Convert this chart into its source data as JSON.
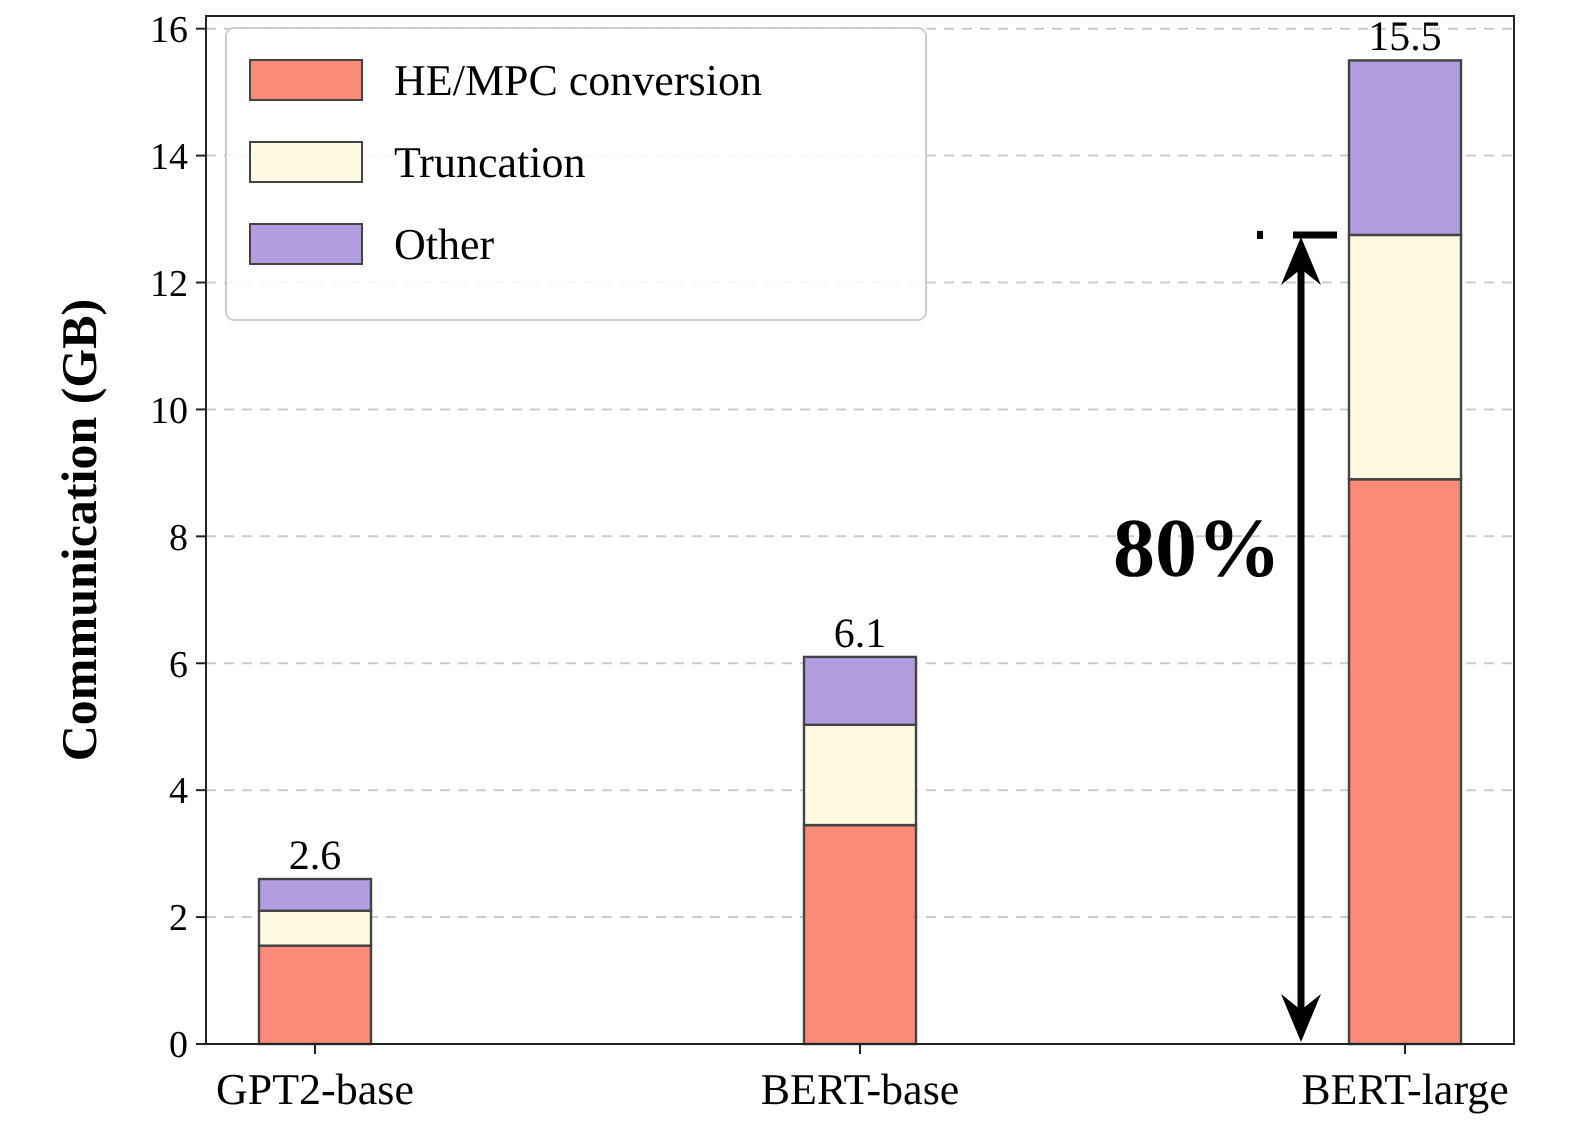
{
  "chart_data": {
    "type": "bar",
    "stacked": true,
    "ylabel": "Communication (GB)",
    "categories": [
      "GPT2-base",
      "BERT-base",
      "BERT-large"
    ],
    "series": [
      {
        "name": "HE/MPC conversion",
        "color": "#fa8b78",
        "values": [
          1.55,
          3.45,
          8.9
        ]
      },
      {
        "name": "Truncation",
        "color": "#fefae2",
        "values": [
          0.55,
          1.58,
          3.85
        ]
      },
      {
        "name": "Other",
        "color": "#b19de0",
        "values": [
          0.5,
          1.07,
          2.75
        ]
      }
    ],
    "totals": [
      "2.6",
      "6.1",
      "15.5"
    ],
    "ylim": [
      0,
      16.2
    ],
    "yticks": [
      0,
      2,
      4,
      6,
      8,
      10,
      12,
      14,
      16
    ],
    "grid": "y",
    "legend": "top left",
    "annotations": [
      "80%"
    ]
  }
}
